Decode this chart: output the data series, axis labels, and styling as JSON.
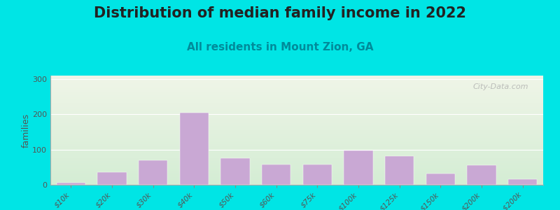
{
  "title": "Distribution of median family income in 2022",
  "subtitle": "All residents in Mount Zion, GA",
  "ylabel": "families",
  "categories": [
    "$10k",
    "$20k",
    "$30k",
    "$40k",
    "$50k",
    "$60k",
    "$75k",
    "$100k",
    "$125k",
    "$150k",
    "$200k",
    "> $200k"
  ],
  "values": [
    5,
    35,
    70,
    205,
    75,
    58,
    57,
    98,
    82,
    32,
    55,
    15
  ],
  "bar_color": "#c9a8d4",
  "background_outer": "#00e5e5",
  "background_plot_top": "#f0f5e8",
  "background_plot_bottom": "#d4edd4",
  "ylim": [
    0,
    310
  ],
  "yticks": [
    0,
    100,
    200,
    300
  ],
  "title_fontsize": 15,
  "subtitle_fontsize": 11,
  "watermark_text": "City-Data.com",
  "tick_label_color": "#555555",
  "ylabel_color": "#555555",
  "title_color": "#222222",
  "subtitle_color": "#008b9a",
  "bar_width": 0.7
}
